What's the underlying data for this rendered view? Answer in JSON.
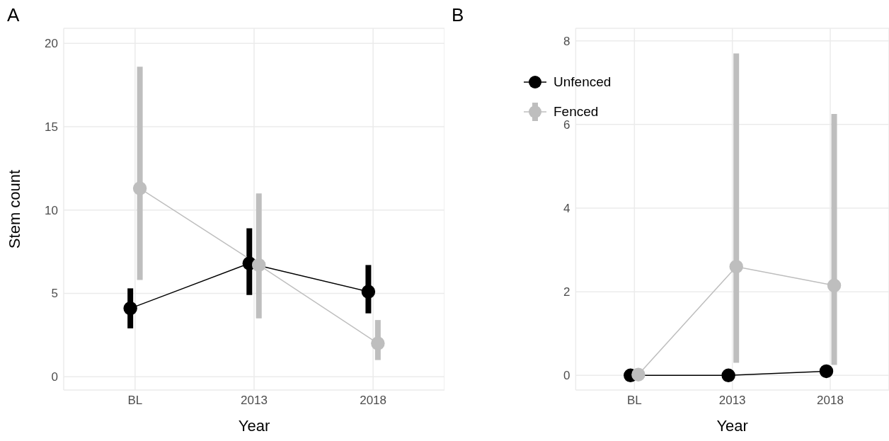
{
  "chart_data": [
    {
      "type": "line",
      "title": "A",
      "xlabel": "Year",
      "ylabel": "Stem count",
      "categories": [
        "BL",
        "2013",
        "2018"
      ],
      "ylim": [
        -0.8,
        20.9
      ],
      "yticks": [
        0,
        5,
        10,
        15,
        20
      ],
      "grid": true,
      "legend": false,
      "marker": "circle",
      "series": [
        {
          "color": "#000000",
          "values": [
            4.1,
            6.8,
            5.1
          ],
          "errors": [
            [
              2.9,
              5.3
            ],
            [
              4.9,
              8.9
            ],
            [
              3.8,
              6.7
            ]
          ]
        },
        {
          "color": "#bebebe",
          "values": [
            11.3,
            6.7,
            2.0
          ],
          "errors": [
            [
              5.8,
              18.6
            ],
            [
              3.5,
              11.0
            ],
            [
              1.0,
              3.4
            ]
          ]
        }
      ]
    },
    {
      "type": "line",
      "title": "B",
      "xlabel": "Year",
      "categories": [
        "BL",
        "2013",
        "2018"
      ],
      "ylim": [
        -0.35,
        8.3
      ],
      "yticks": [
        0,
        2,
        4,
        6,
        8
      ],
      "grid": true,
      "legend": "top left",
      "marker": "circle",
      "series": [
        {
          "name": "Unfenced",
          "color": "#000000",
          "values": [
            0.0,
            0.0,
            0.1
          ]
        },
        {
          "name": "Fenced",
          "color": "#bebebe",
          "values": [
            0.02,
            2.6,
            2.15
          ],
          "errors": [
            null,
            [
              0.3,
              7.7
            ],
            [
              0.25,
              6.25
            ]
          ]
        }
      ]
    }
  ]
}
